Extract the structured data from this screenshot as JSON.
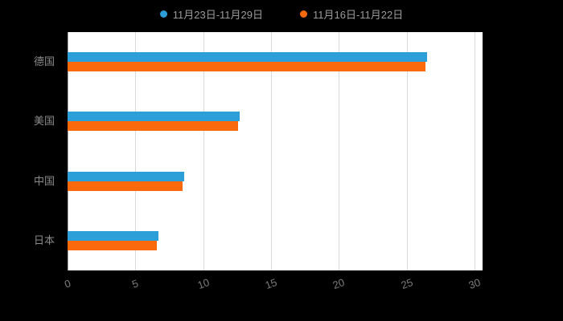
{
  "chart_data": {
    "type": "bar",
    "orientation": "horizontal",
    "title": "",
    "categories": [
      "德国",
      "美国",
      "中国",
      "日本"
    ],
    "series": [
      {
        "name": "11月23日-11月29日",
        "color": "#2D9FD8",
        "values": [
          26.5,
          12.7,
          8.6,
          6.7
        ]
      },
      {
        "name": "11月16日-11月22日",
        "color": "#FA690C",
        "values": [
          26.4,
          12.6,
          8.5,
          6.6
        ]
      }
    ],
    "xticks": [
      0,
      5,
      10,
      15,
      20,
      25,
      30
    ],
    "xlim": [
      0,
      30.6
    ],
    "xlabel": "",
    "ylabel": "",
    "legend_position": "top",
    "grid": true,
    "background_color": "#000000",
    "plot_background_color": "#ffffff",
    "gridline_color": "#d9d9d9",
    "text_color": "#8f8f8f"
  }
}
